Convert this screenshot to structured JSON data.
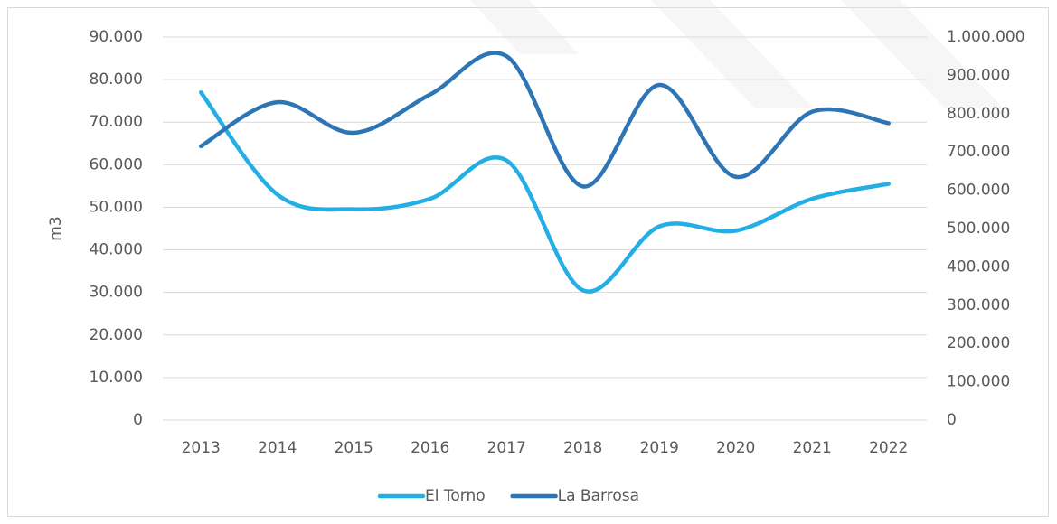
{
  "chart_data": {
    "type": "line",
    "y_label": "m3",
    "categories": [
      "2013",
      "2014",
      "2015",
      "2016",
      "2017",
      "2018",
      "2019",
      "2020",
      "2021",
      "2022"
    ],
    "series": [
      {
        "name": "El Torno",
        "color": "#23aee5",
        "values": [
          77000,
          53000,
          49500,
          52000,
          61000,
          30500,
          45500,
          44500,
          52000,
          55500
        ]
      },
      {
        "name": "La Barrosa",
        "color": "#2e75b6",
        "axis": "y2",
        "values": [
          715000,
          830000,
          750000,
          850000,
          950000,
          610000,
          875000,
          635000,
          805000,
          775000
        ]
      }
    ],
    "ylim": [
      0,
      90000
    ],
    "yticks": [
      0,
      {
        "value": 10000,
        "label": "10.000"
      },
      {
        "value": 20000,
        "label": "20.000"
      },
      {
        "value": 30000,
        "label": "30.000"
      },
      {
        "value": 40000,
        "label": "40.000"
      },
      {
        "value": 50000,
        "label": "50.000"
      },
      {
        "value": 60000,
        "label": "60.000"
      },
      {
        "value": 70000,
        "label": "70.000"
      },
      {
        "value": 80000,
        "label": "80.000"
      },
      {
        "value": 90000,
        "label": "90.000"
      }
    ],
    "y2lim": [
      0,
      1000000
    ],
    "y2ticks": [
      0,
      {
        "value": 100000,
        "label": "100.000"
      },
      {
        "value": 200000,
        "label": "200.000"
      },
      {
        "value": 300000,
        "label": "300.000"
      },
      {
        "value": 400000,
        "label": "400.000"
      },
      {
        "value": 500000,
        "label": "500.000"
      },
      {
        "value": 600000,
        "label": "600.000"
      },
      {
        "value": 700000,
        "label": "700.000"
      },
      {
        "value": 800000,
        "label": "800.000"
      },
      {
        "value": 900000,
        "label": "900.000"
      },
      {
        "value": 1000000,
        "label": "1.000.000"
      }
    ],
    "grid": true,
    "legend": "bottom"
  }
}
